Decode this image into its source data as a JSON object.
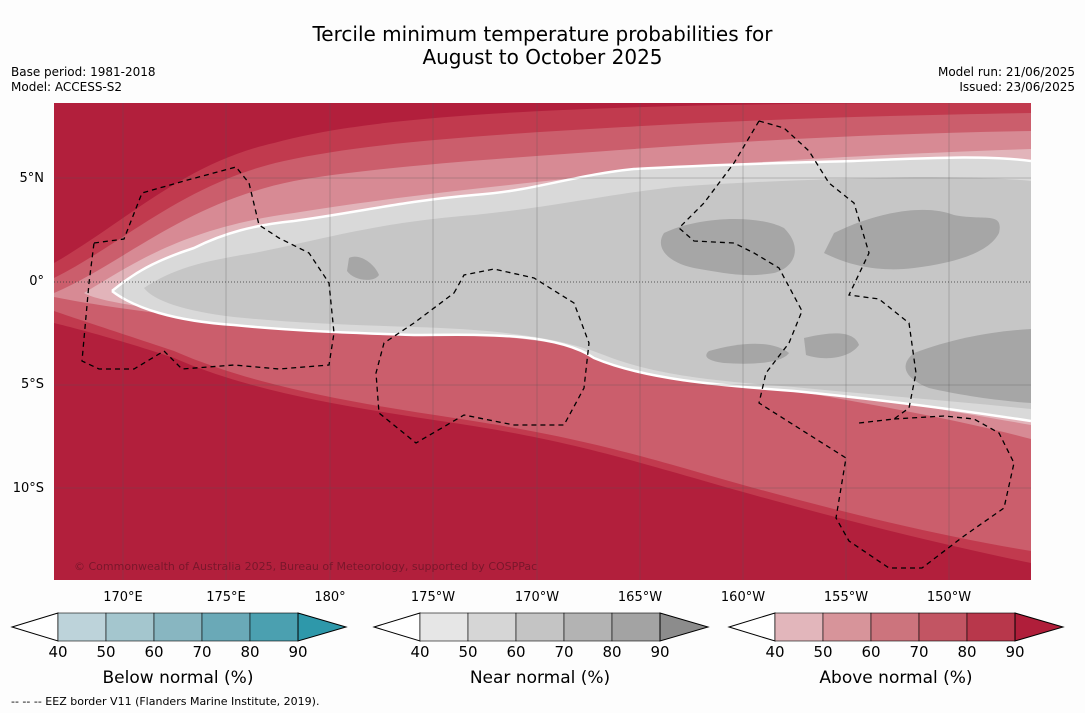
{
  "title": {
    "line1": "Tercile minimum temperature probabilities for",
    "line2": "August to October 2025"
  },
  "meta": {
    "base_period": "Base period: 1981-2018",
    "model": "Model: ACCESS-S2",
    "model_run": "Model run: 21/06/2025",
    "issued": "Issued: 23/06/2025"
  },
  "map": {
    "lat_labels": [
      "5°N",
      "0°",
      "5°S",
      "10°S"
    ],
    "lon_labels": [
      "170°E",
      "175°E",
      "180°",
      "175°W",
      "170°W",
      "165°W",
      "160°W",
      "155°W",
      "150°W"
    ],
    "copyright": "© Commonwealth of Australia 2025, Bureau of Meteorology, supported by COSPPac",
    "colors": {
      "ocean_above_high": "#b21f3c",
      "above_80": "#c13a4e",
      "above_70": "#cb5e6c",
      "above_60": "#d78a94",
      "above_50": "#e2b4ba",
      "near_light": "#d9d9d9",
      "near_mid": "#c6c6c6",
      "near_dark": "#a6a6a6"
    }
  },
  "colorbars": [
    {
      "title": "Below normal (%)",
      "ticks": [
        "40",
        "50",
        "60",
        "70",
        "80",
        "90"
      ],
      "colors": [
        "#bdd3da",
        "#a4c6ce",
        "#88b6c1",
        "#6aa9b7",
        "#4ba0b0",
        "#2e98aa"
      ]
    },
    {
      "title": "Near normal (%)",
      "ticks": [
        "40",
        "50",
        "60",
        "70",
        "80",
        "90"
      ],
      "colors": [
        "#e6e6e6",
        "#d6d6d6",
        "#c4c4c4",
        "#b3b3b3",
        "#a3a3a3",
        "#8c8c8c"
      ]
    },
    {
      "title": "Above normal (%)",
      "ticks": [
        "40",
        "50",
        "60",
        "70",
        "80",
        "90"
      ],
      "colors": [
        "#e2b6bb",
        "#d7949a",
        "#cc747d",
        "#c25563",
        "#b8374b",
        "#b01e3a"
      ]
    }
  ],
  "footnote": "--  --  -- EEZ border V11 (Flanders Marine Institute, 2019)."
}
